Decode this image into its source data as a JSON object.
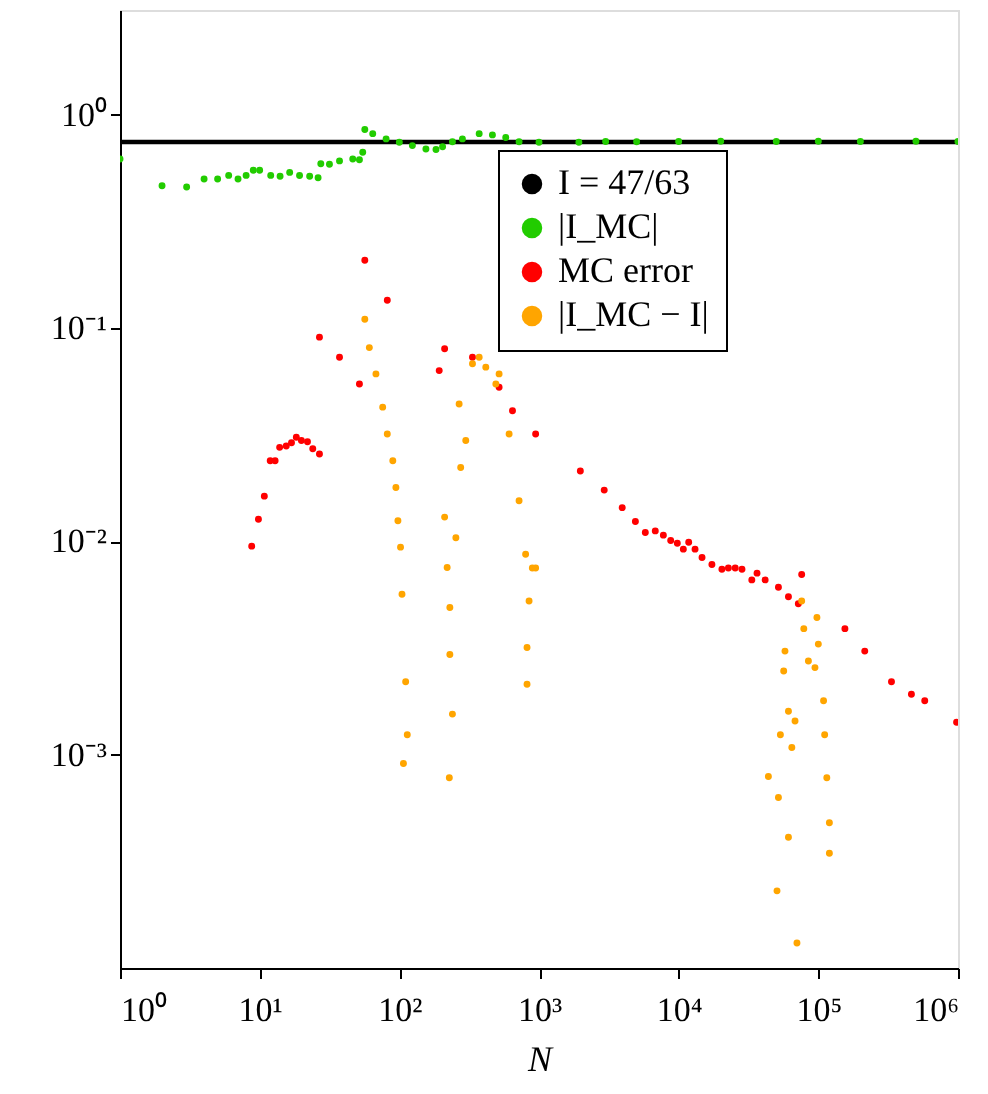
{
  "chart_data": {
    "type": "scatter",
    "xlabel": "N",
    "log": "xy",
    "grid": false,
    "legend": "top right",
    "xlim": [
      1,
      1000000
    ],
    "ylim": [
      0.0001,
      3.1
    ],
    "xticks": [
      {
        "value": 1,
        "label": "10⁰"
      },
      {
        "value": 10,
        "label": "10¹"
      },
      {
        "value": 100,
        "label": "10²"
      },
      {
        "value": 1000,
        "label": "10³"
      },
      {
        "value": 10000,
        "label": "10⁴"
      },
      {
        "value": 100000,
        "label": "10⁵"
      },
      {
        "value": 1000000,
        "label": "10⁶"
      }
    ],
    "yticks": [
      {
        "value": 0.001,
        "label": "10⁻³"
      },
      {
        "value": 0.01,
        "label": "10⁻²"
      },
      {
        "value": 0.1,
        "label": "10⁻¹"
      },
      {
        "value": 1,
        "label": "10⁰"
      }
    ],
    "series": [
      {
        "name": "I = 47/63",
        "type": "line",
        "color": "#000000",
        "line_style": "solid",
        "x": [
          1,
          1000000
        ],
        "values": [
          0.746,
          0.746
        ]
      },
      {
        "name": "|I_MC|",
        "color": "#22cc00",
        "marker": "circle",
        "x": [
          1,
          2,
          3,
          4,
          5,
          6,
          7,
          8,
          9,
          10,
          12,
          14,
          16.4,
          19.3,
          22.8,
          26.2,
          27.4,
          31.6,
          37.3,
          46.4,
          51.8,
          54.7,
          56.6,
          64.5,
          80.4,
          100,
          124,
          155,
          183,
          204,
          240,
          283,
          373,
          464,
          578,
          720,
          1000,
          1930,
          3000,
          5000,
          10000,
          20000,
          50000,
          100000,
          200000,
          500000,
          1000000
        ],
        "values": [
          0.62,
          0.465,
          0.459,
          0.5,
          0.5,
          0.52,
          0.5,
          0.52,
          0.55,
          0.55,
          0.52,
          0.515,
          0.537,
          0.519,
          0.515,
          0.507,
          0.59,
          0.586,
          0.608,
          0.62,
          0.616,
          0.667,
          0.853,
          0.816,
          0.771,
          0.743,
          0.717,
          0.692,
          0.687,
          0.708,
          0.748,
          0.771,
          0.816,
          0.805,
          0.783,
          0.748,
          0.743,
          0.743,
          0.75,
          0.748,
          0.75,
          0.752,
          0.75,
          0.752,
          0.75,
          0.752,
          0.75
        ]
      },
      {
        "name": "MC error",
        "color": "#ff0000",
        "marker": "circle",
        "x": [
          8.77,
          9.8,
          10.8,
          11.9,
          12.9,
          13.9,
          15.5,
          16.9,
          18.3,
          19.9,
          22,
          24,
          26.8,
          26.8,
          37.3,
          51.8,
          56.6,
          82,
          193,
          211,
          334,
          518,
          646,
          946,
          1977,
          2931,
          3943,
          4900,
          5770,
          6800,
          7770,
          8770,
          9780,
          10800,
          11800,
          13100,
          14700,
          17300,
          20400,
          22700,
          25400,
          28400,
          33400,
          36400,
          41600,
          51800,
          61100,
          71900,
          76000,
          155000,
          215000,
          334000,
          464000,
          578000,
          977000
        ],
        "values": [
          0.0095,
          0.0127,
          0.0163,
          0.0239,
          0.0239,
          0.0276,
          0.028,
          0.029,
          0.0308,
          0.0297,
          0.0293,
          0.0272,
          0.0257,
          0.0907,
          0.073,
          0.0547,
          0.208,
          0.135,
          0.0632,
          0.08,
          0.073,
          0.0528,
          0.041,
          0.0319,
          0.0214,
          0.0174,
          0.0144,
          0.0124,
          0.011,
          0.0112,
          0.0107,
          0.0101,
          0.0098,
          0.0092,
          0.0099,
          0.0092,
          0.0084,
          0.0078,
          0.0074,
          0.0075,
          0.0075,
          0.0074,
          0.0066,
          0.0071,
          0.0066,
          0.0061,
          0.0055,
          0.0051,
          0.007,
          0.0039,
          0.00306,
          0.0022,
          0.00192,
          0.00179,
          0.00142
        ]
      },
      {
        "name": "|I_MC − I|",
        "color": "#ffa500",
        "marker": "circle",
        "x": [
          56.6,
          61,
          68,
          76,
          82,
          89.8,
          94.5,
          97.7,
          102,
          104.5,
          111,
          114,
          107,
          268,
          299,
          275,
          211,
          220,
          254,
          230,
          230,
          240,
          228,
          334,
          373,
          416,
          491,
          518,
          611,
          720,
          802,
          896,
          849,
          821,
          821,
          946,
          43900,
          50600,
          51800,
          53500,
          56500,
          57700,
          61100,
          61100,
          64600,
          68100,
          70300,
          76000,
          78700,
          84900,
          94600,
          97700,
          100000,
          109000,
          111000,
          115000,
          120000,
          120000
        ],
        "values": [
          0.11,
          0.081,
          0.061,
          0.0426,
          0.0319,
          0.0239,
          0.0179,
          0.0125,
          0.0094,
          0.00565,
          0.0022,
          0.00124,
          0.00091,
          0.0441,
          0.0297,
          0.0222,
          0.013,
          0.00755,
          0.0104,
          0.0049,
          0.00295,
          0.00155,
          0.00078,
          0.068,
          0.073,
          0.0656,
          0.0547,
          0.061,
          0.0319,
          0.0155,
          0.0087,
          0.0075,
          0.00526,
          0.00318,
          0.00214,
          0.0075,
          0.00079,
          0.00023,
          0.00063,
          0.00124,
          0.00247,
          0.00306,
          0.0016,
          0.00041,
          0.00108,
          0.00144,
          0.000131,
          0.00526,
          0.0039,
          0.00275,
          0.00256,
          0.0044,
          0.0033,
          0.00179,
          0.00124,
          0.00078,
          0.00048,
          0.000345
        ]
      }
    ]
  }
}
